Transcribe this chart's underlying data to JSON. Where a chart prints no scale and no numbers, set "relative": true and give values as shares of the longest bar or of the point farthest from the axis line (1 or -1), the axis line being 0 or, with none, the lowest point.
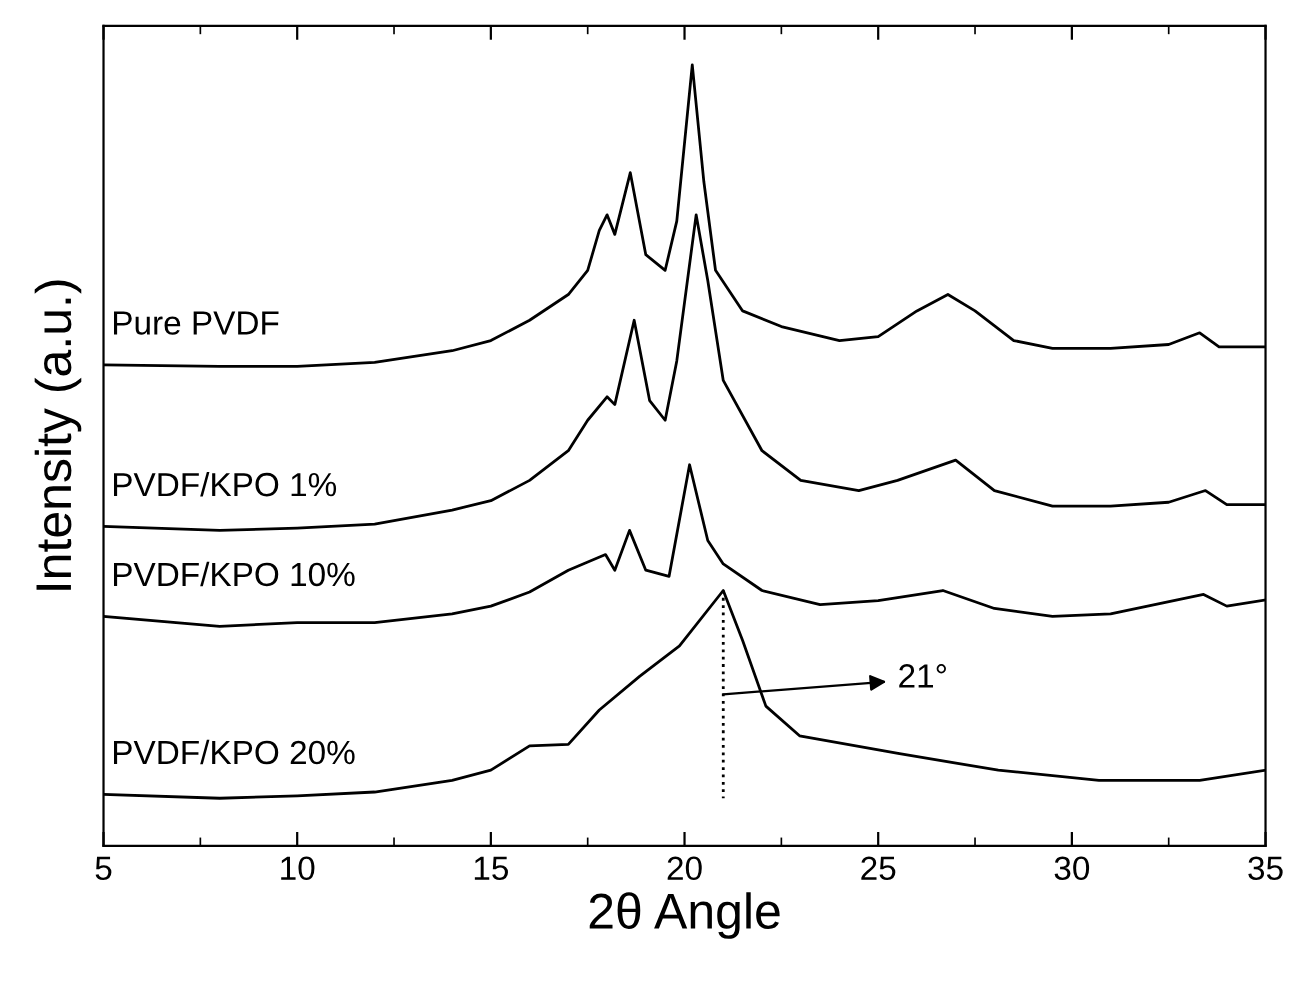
{
  "chart_data": {
    "type": "line",
    "relative": true,
    "xlabel": "2θ Angle",
    "ylabel": "Intensity (a.u.)",
    "xlim": [
      5,
      35
    ],
    "xticks": [
      5,
      10,
      15,
      20,
      25,
      30,
      35
    ],
    "tick_labels": "x",
    "grid": false,
    "legend": false,
    "marker": "none",
    "line_style": "solid",
    "ref_lines": [
      {
        "axis": "x",
        "value": 21,
        "label": "21°",
        "line_style": "dotted",
        "color": "#000000"
      }
    ],
    "series": [
      {
        "name": "Pure PVDF",
        "color": "#000000",
        "x": [
          5,
          8,
          10,
          12,
          14,
          15,
          16,
          17,
          17.5,
          17.8,
          18.0,
          18.2,
          18.6,
          19.0,
          19.5,
          19.8,
          20.2,
          20.5,
          20.8,
          21.5,
          22.5,
          24,
          25,
          26,
          26.8,
          27.5,
          28.5,
          29.5,
          31,
          32.5,
          33.3,
          33.8,
          35
        ],
        "values": [
          0.616,
          0.614,
          0.614,
          0.619,
          0.634,
          0.647,
          0.673,
          0.706,
          0.737,
          0.788,
          0.808,
          0.783,
          0.862,
          0.757,
          0.737,
          0.8,
          1.0,
          0.85,
          0.737,
          0.685,
          0.665,
          0.647,
          0.652,
          0.685,
          0.706,
          0.685,
          0.647,
          0.637,
          0.637,
          0.642,
          0.657,
          0.639,
          0.639
        ]
      },
      {
        "name": "PVDF/KPO 1%",
        "color": "#000000",
        "x": [
          5,
          8,
          10,
          12,
          14,
          15,
          16,
          17,
          17.5,
          18.0,
          18.2,
          18.7,
          19.1,
          19.5,
          19.8,
          20.3,
          20.6,
          21,
          22,
          23,
          24.5,
          25.5,
          27.0,
          28,
          29.5,
          31,
          32.5,
          33.45,
          34,
          35
        ],
        "values": [
          0.409,
          0.404,
          0.407,
          0.412,
          0.43,
          0.442,
          0.468,
          0.506,
          0.545,
          0.575,
          0.565,
          0.673,
          0.57,
          0.545,
          0.621,
          0.808,
          0.724,
          0.596,
          0.506,
          0.468,
          0.455,
          0.468,
          0.494,
          0.455,
          0.435,
          0.435,
          0.44,
          0.455,
          0.437,
          0.437
        ]
      },
      {
        "name": "PVDF/KPO 10%",
        "color": "#000000",
        "x": [
          5,
          8,
          10,
          12,
          14,
          15,
          16,
          17,
          17.96,
          18.2,
          18.58,
          19.0,
          19.6,
          20.13,
          20.6,
          21.0,
          22,
          23.5,
          25,
          26.67,
          28,
          29.5,
          31,
          33.4,
          34,
          35
        ],
        "values": [
          0.294,
          0.281,
          0.286,
          0.286,
          0.297,
          0.307,
          0.325,
          0.353,
          0.373,
          0.353,
          0.404,
          0.353,
          0.345,
          0.488,
          0.391,
          0.361,
          0.327,
          0.309,
          0.314,
          0.327,
          0.304,
          0.294,
          0.297,
          0.322,
          0.307,
          0.315
        ]
      },
      {
        "name": "PVDF/KPO 20%",
        "color": "#000000",
        "x": [
          5,
          8,
          10,
          12,
          14,
          15,
          16,
          17,
          17.8,
          18.84,
          19.87,
          21.0,
          21.5,
          22.1,
          22.97,
          25.55,
          28.1,
          30.7,
          33.3,
          35
        ],
        "values": [
          0.066,
          0.061,
          0.064,
          0.069,
          0.084,
          0.097,
          0.128,
          0.13,
          0.174,
          0.217,
          0.256,
          0.327,
          0.263,
          0.179,
          0.141,
          0.118,
          0.097,
          0.084,
          0.084,
          0.097
        ]
      }
    ]
  }
}
